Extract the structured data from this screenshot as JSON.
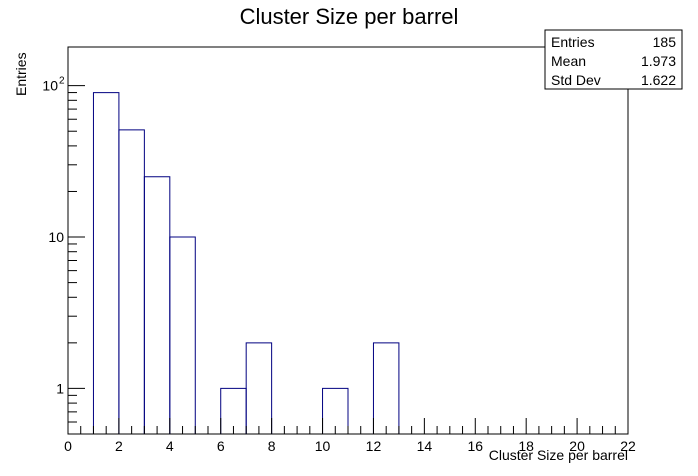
{
  "chart_data": {
    "type": "bar",
    "histogram": true,
    "title": "Cluster Size per barrel",
    "xlabel": "Cluster Size per barrel",
    "ylabel": "Entries",
    "xlim": [
      0,
      22
    ],
    "ylim": [
      0.5,
      180
    ],
    "y_scale": "log",
    "grid": false,
    "line_color": "#000080",
    "bins": [
      {
        "x0": 1,
        "x1": 2,
        "value": 90
      },
      {
        "x0": 2,
        "x1": 3,
        "value": 51
      },
      {
        "x0": 3,
        "x1": 4,
        "value": 25
      },
      {
        "x0": 4,
        "x1": 5,
        "value": 10
      },
      {
        "x0": 6,
        "x1": 7,
        "value": 1
      },
      {
        "x0": 7,
        "x1": 8,
        "value": 2
      },
      {
        "x0": 10,
        "x1": 11,
        "value": 1
      },
      {
        "x0": 12,
        "x1": 13,
        "value": 2
      }
    ],
    "x_ticks": [
      {
        "value": 0,
        "label": "0"
      },
      {
        "value": 2,
        "label": "2"
      },
      {
        "value": 4,
        "label": "4"
      },
      {
        "value": 6,
        "label": "6"
      },
      {
        "value": 8,
        "label": "8"
      },
      {
        "value": 10,
        "label": "10"
      },
      {
        "value": 12,
        "label": "12"
      },
      {
        "value": 14,
        "label": "14"
      },
      {
        "value": 16,
        "label": "16"
      },
      {
        "value": 18,
        "label": "18"
      },
      {
        "value": 20,
        "label": "20"
      },
      {
        "value": 22,
        "label": "22"
      }
    ],
    "y_ticks": [
      {
        "value": 1,
        "label": "1"
      },
      {
        "value": 10,
        "label": "10"
      },
      {
        "value": 100,
        "label": "10",
        "exponent": "2"
      }
    ],
    "stats": {
      "entries_label": "Entries",
      "entries_value": "185",
      "mean_label": "Mean",
      "mean_value": "1.973",
      "std_label": "Std Dev",
      "std_value": "1.622"
    }
  }
}
